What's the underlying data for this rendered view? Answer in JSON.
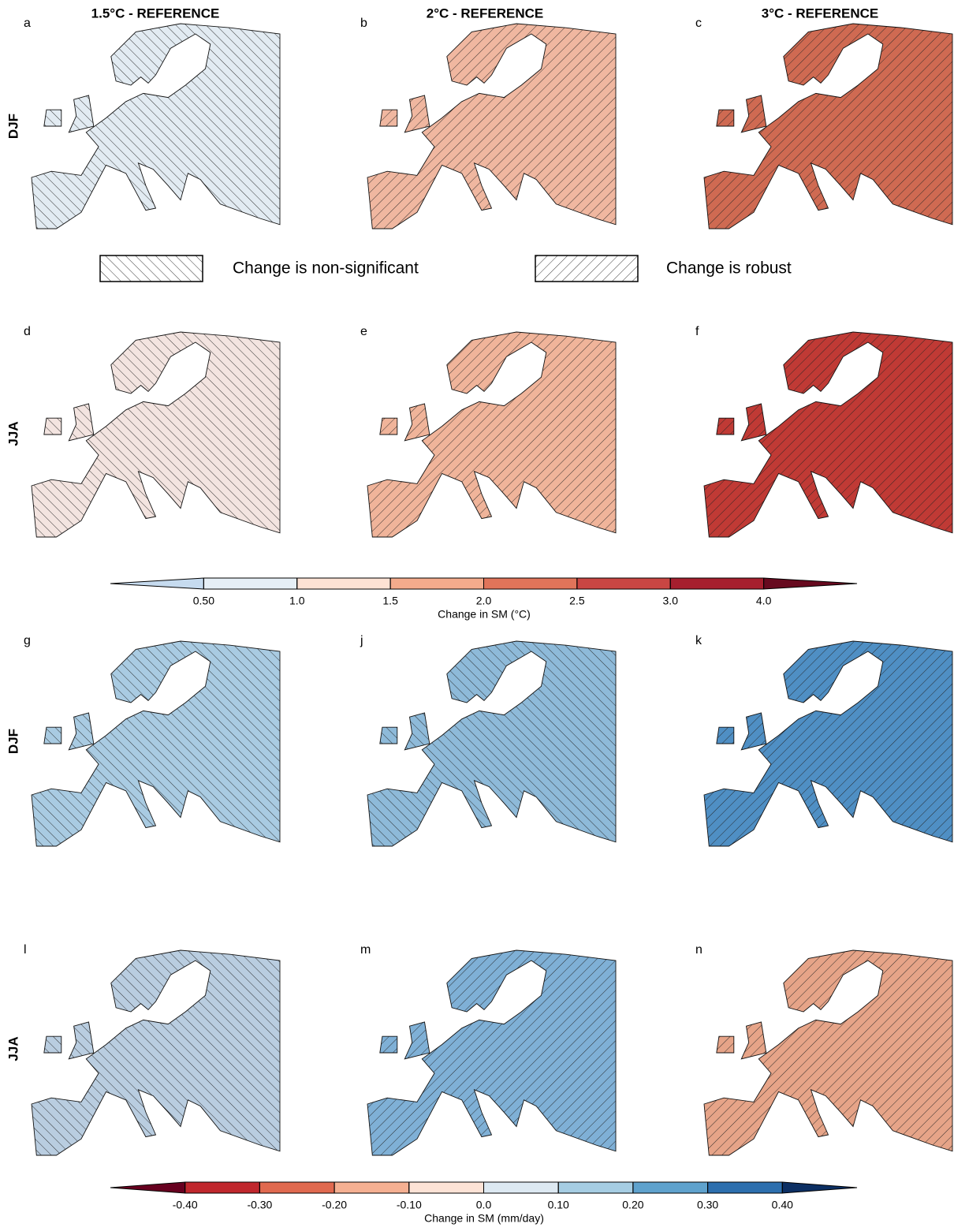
{
  "columns": [
    "1.5°C - REFERENCE",
    "2°C - REFERENCE",
    "3°C - REFERENCE"
  ],
  "rows": [
    {
      "label": "DJF",
      "panels": [
        "a",
        "b",
        "c"
      ]
    },
    {
      "label": "JJA",
      "panels": [
        "d",
        "e",
        "f"
      ]
    },
    {
      "label": "DJF",
      "panels": [
        "g",
        "j",
        "k"
      ]
    },
    {
      "label": "JJA",
      "panels": [
        "l",
        "m",
        "n"
      ]
    }
  ],
  "hatch_legend": [
    "Change is non-significant",
    "Change is robust"
  ],
  "colorbars": [
    {
      "label": "Change in SM (°C)",
      "ticks": [
        {
          "value": 0.5,
          "label": "0.50"
        },
        {
          "value": 1,
          "label": "1.0"
        },
        {
          "value": 1.5,
          "label": "1.5"
        },
        {
          "value": 2,
          "label": "2.0"
        },
        {
          "value": 2.5,
          "label": "2.5"
        },
        {
          "value": 3,
          "label": "3.0"
        },
        {
          "value": 4,
          "label": "4.0"
        }
      ],
      "colors": [
        "#c6dbef",
        "#e6eff6",
        "#fde2d4",
        "#f4ab8c",
        "#e0745a",
        "#c94643",
        "#a61f2e",
        "#670a1f"
      ]
    },
    {
      "label": "Change in SM (mm/day)",
      "ticks": [
        {
          "value": -0.4,
          "label": "-0.40"
        },
        {
          "value": -0.3,
          "label": "-0.30"
        },
        {
          "value": -0.2,
          "label": "-0.20"
        },
        {
          "value": -0.1,
          "label": "-0.10"
        },
        {
          "value": 0,
          "label": "0.0"
        },
        {
          "value": 0.1,
          "label": "0.10"
        },
        {
          "value": 0.2,
          "label": "0.20"
        },
        {
          "value": 0.3,
          "label": "0.30"
        },
        {
          "value": 0.4,
          "label": "0.40"
        }
      ],
      "colors": [
        "#67001f",
        "#c0272d",
        "#e0694f",
        "#f5b092",
        "#fde3d6",
        "#dde9f2",
        "#a6cde3",
        "#5fa2cd",
        "#2d6fae",
        "#0c2f63"
      ]
    }
  ]
}
